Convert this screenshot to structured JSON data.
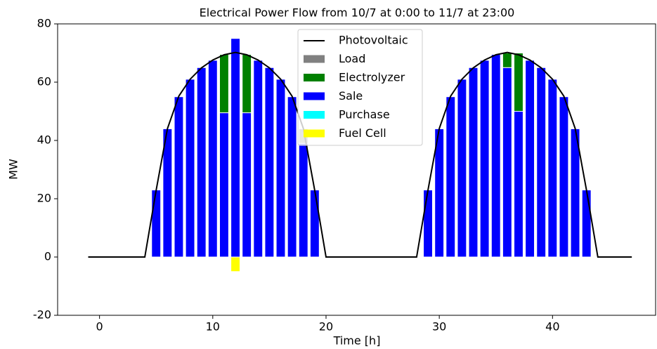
{
  "chart_data": {
    "type": "bar",
    "title": "Electrical Power Flow from 10/7 at 0:00 to 11/7 at 23:00",
    "x_label": "Time [h]",
    "y_label": "MW",
    "xlim": [
      -3.7,
      49.1
    ],
    "ylim": [
      -20,
      80
    ],
    "xticks": [
      0,
      10,
      20,
      30,
      40
    ],
    "yticks": [
      -20,
      0,
      20,
      40,
      60,
      80
    ],
    "legend": "upper center",
    "line": {
      "name": "Photovoltaic",
      "color": "#000000",
      "x": [
        -1,
        0,
        1,
        2,
        3,
        4,
        5,
        6,
        7,
        8,
        9,
        10,
        11,
        12,
        13,
        14,
        15,
        16,
        17,
        18,
        19,
        20,
        21,
        22,
        23,
        24,
        25,
        26,
        27,
        28,
        29,
        30,
        31,
        32,
        33,
        34,
        35,
        36,
        37,
        38,
        39,
        40,
        41,
        42,
        43,
        44,
        45,
        46,
        47
      ],
      "values": [
        0,
        0,
        0,
        0,
        0,
        0,
        22.9,
        44.1,
        55.2,
        61,
        64.9,
        67.6,
        69.4,
        70.2,
        69.4,
        67.6,
        64.9,
        61,
        55.2,
        44.1,
        22.9,
        0,
        0,
        0,
        0,
        0,
        0,
        0,
        0,
        0,
        22.9,
        44.1,
        55.2,
        61,
        64.9,
        67.6,
        69.4,
        70.2,
        69.4,
        67.6,
        64.9,
        61,
        55.2,
        44.1,
        22.9,
        0,
        0,
        0,
        0
      ]
    },
    "bar_x": [
      5,
      6,
      7,
      8,
      9,
      10,
      11,
      12,
      13,
      14,
      15,
      16,
      17,
      18,
      19,
      29,
      30,
      31,
      32,
      33,
      34,
      35,
      36,
      37,
      38,
      39,
      40,
      41,
      42,
      43
    ],
    "series": [
      {
        "name": "Load",
        "color": "#808080",
        "values": [
          0,
          0,
          0,
          0,
          0,
          0,
          0,
          0,
          0,
          0,
          0,
          0,
          0,
          5,
          0,
          0,
          0,
          0,
          0,
          0,
          0,
          0,
          0,
          0,
          0,
          0,
          0,
          0,
          0,
          0
        ]
      },
      {
        "name": "Electrolyzer",
        "color": "#008000",
        "values": [
          0,
          0,
          0,
          0,
          0,
          0,
          20,
          0,
          20,
          0,
          0,
          0,
          0,
          0,
          0,
          0,
          0,
          0,
          0,
          0,
          0,
          0,
          5,
          20,
          0,
          0,
          0,
          0,
          0,
          0
        ]
      },
      {
        "name": "Sale",
        "color": "#0000ff",
        "values": [
          23,
          44,
          55,
          61,
          65,
          67.5,
          49.5,
          75,
          49.5,
          67.5,
          65,
          61,
          55,
          39,
          23,
          23,
          44,
          55,
          61,
          65,
          67.5,
          69.5,
          65,
          50,
          67.5,
          65,
          61,
          55,
          44,
          23
        ]
      },
      {
        "name": "Purchase",
        "color": "#00ffff",
        "values": [
          0,
          0,
          0,
          0,
          0,
          0,
          0,
          0,
          0,
          0,
          0,
          0,
          0,
          0,
          0,
          0,
          0,
          0,
          0,
          0,
          0,
          0,
          0,
          0,
          0,
          0,
          0,
          0,
          0,
          0
        ]
      },
      {
        "name": "Fuel Cell",
        "color": "#ffff00",
        "values": [
          0,
          0,
          0,
          0,
          0,
          0,
          0,
          -5,
          0,
          0,
          0,
          0,
          0,
          0,
          0,
          0,
          0,
          0,
          0,
          0,
          0,
          0,
          0,
          0,
          0,
          0,
          0,
          0,
          0,
          0
        ]
      }
    ]
  }
}
